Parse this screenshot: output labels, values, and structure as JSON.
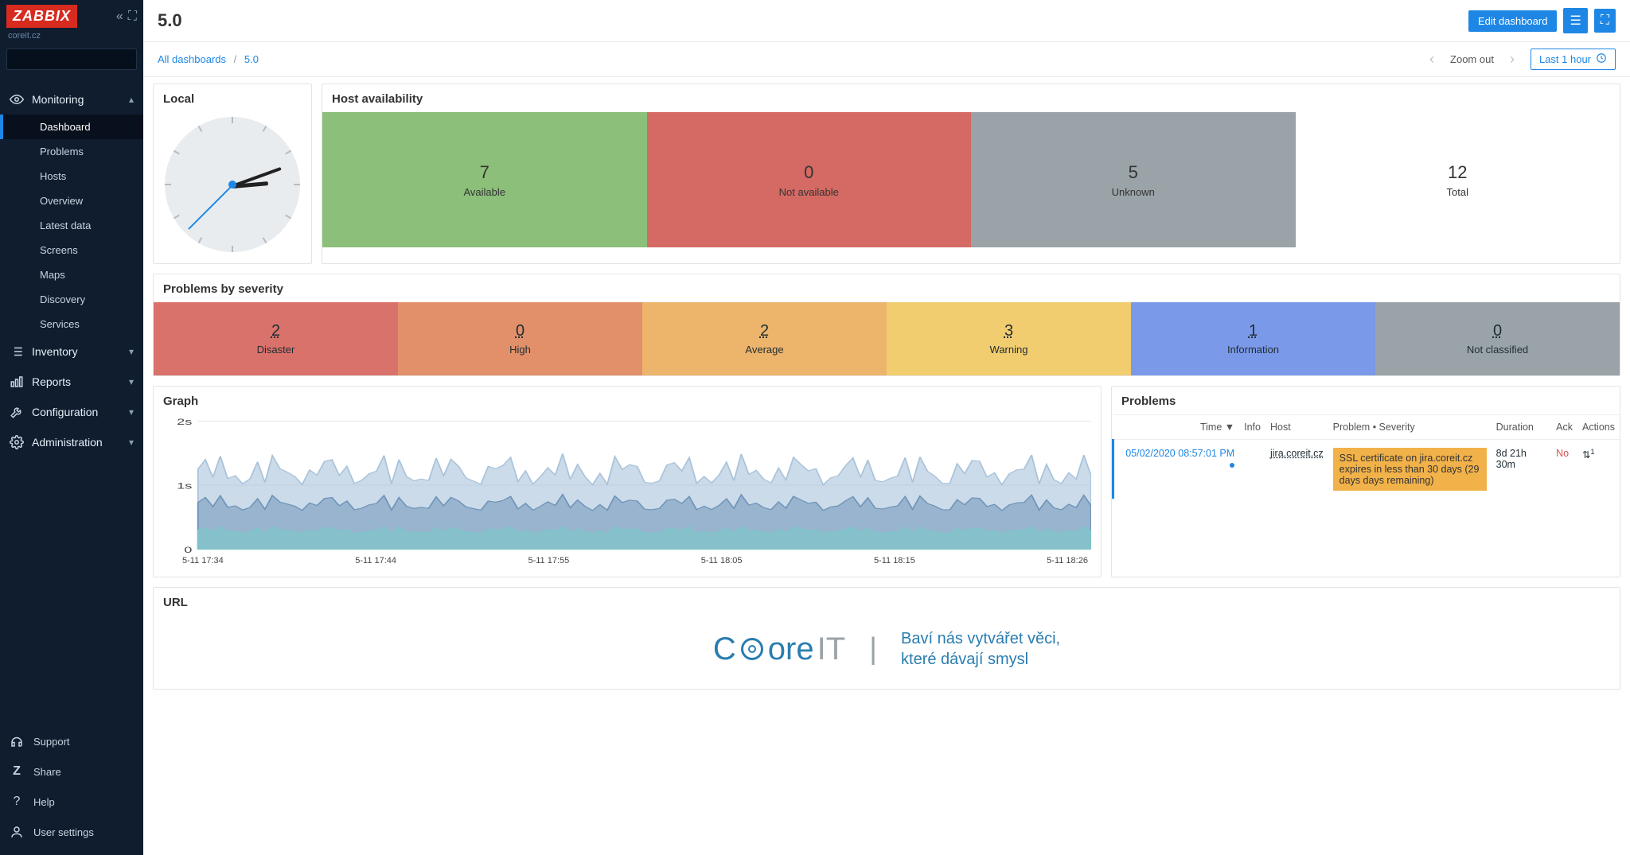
{
  "brand": {
    "logo_text": "ZABBIX",
    "site": "coreit.cz"
  },
  "sidebar": {
    "search_placeholder": "",
    "monitoring": {
      "label": "Monitoring",
      "items": [
        {
          "label": "Dashboard",
          "active": true
        },
        {
          "label": "Problems"
        },
        {
          "label": "Hosts"
        },
        {
          "label": "Overview"
        },
        {
          "label": "Latest data"
        },
        {
          "label": "Screens"
        },
        {
          "label": "Maps"
        },
        {
          "label": "Discovery"
        },
        {
          "label": "Services"
        }
      ]
    },
    "sections": [
      {
        "label": "Inventory",
        "icon": "list"
      },
      {
        "label": "Reports",
        "icon": "bar"
      },
      {
        "label": "Configuration",
        "icon": "wrench"
      },
      {
        "label": "Administration",
        "icon": "gear"
      }
    ],
    "bottom": [
      {
        "label": "Support",
        "icon": "headset"
      },
      {
        "label": "Share",
        "icon": "share"
      },
      {
        "label": "Help",
        "icon": "help"
      },
      {
        "label": "User settings",
        "icon": "user"
      }
    ]
  },
  "header": {
    "title": "5.0",
    "edit_button": "Edit dashboard",
    "breadcrumb": {
      "root": "All dashboards",
      "current": "5.0"
    },
    "zoom_out": "Zoom out",
    "time_range": "Last 1 hour"
  },
  "widgets": {
    "clock": {
      "title": "Local",
      "hour_angle": 85,
      "minute_angle": 70,
      "second_angle": 225
    },
    "host_availability": {
      "title": "Host availability",
      "cells": [
        {
          "value": "7",
          "label": "Available",
          "color": "#8bbf7a"
        },
        {
          "value": "0",
          "label": "Not available",
          "color": "#d46a63"
        },
        {
          "value": "5",
          "label": "Unknown",
          "color": "#9aa3a7"
        },
        {
          "value": "12",
          "label": "Total",
          "color": "#ffffff"
        }
      ]
    },
    "severity": {
      "title": "Problems by severity",
      "cells": [
        {
          "value": "2",
          "label": "Disaster",
          "color": "#d9726b"
        },
        {
          "value": "0",
          "label": "High",
          "color": "#e1906a"
        },
        {
          "value": "2",
          "label": "Average",
          "color": "#edb56b"
        },
        {
          "value": "3",
          "label": "Warning",
          "color": "#f2cd6f"
        },
        {
          "value": "1",
          "label": "Information",
          "color": "#7a99e8"
        },
        {
          "value": "0",
          "label": "Not classified",
          "color": "#9aa3a7"
        }
      ]
    },
    "graph": {
      "title": "Graph",
      "y_labels": [
        "2s",
        "1s",
        "0"
      ],
      "y_values": [
        2,
        1,
        0
      ],
      "x_labels": [
        "5-11 17:34",
        "5-11 17:44",
        "5-11 17:55",
        "5-11 18:05",
        "5-11 18:15",
        "5-11 18:26"
      ],
      "area_color_dark": "#6f93b8",
      "area_color_light": "#a9c3da",
      "area_color_teal": "#7fc4c9",
      "background": "#ffffff",
      "series_max": 1.4,
      "series_min": 0.25
    },
    "problems": {
      "title": "Problems",
      "columns": [
        "Time ▼",
        "Info",
        "Host",
        "Problem • Severity",
        "Duration",
        "Ack",
        "Actions"
      ],
      "rows": [
        {
          "time": "05/02/2020 08:57:01 PM",
          "info": "",
          "host": "jira.coreit.cz",
          "problem": "SSL certificate on jira.coreit.cz expires in less than 30 days (29 days days remaining)",
          "problem_bg": "#f2b24a",
          "duration": "8d 21h 30m",
          "ack": "No",
          "actions_icon": "⇅"
        }
      ]
    },
    "url": {
      "title": "URL",
      "logo_core": "C",
      "logo_ore": "ore",
      "logo_it": "IT",
      "tagline1": "Baví nás vytvářet věci,",
      "tagline2": "které dávají smysl"
    }
  }
}
